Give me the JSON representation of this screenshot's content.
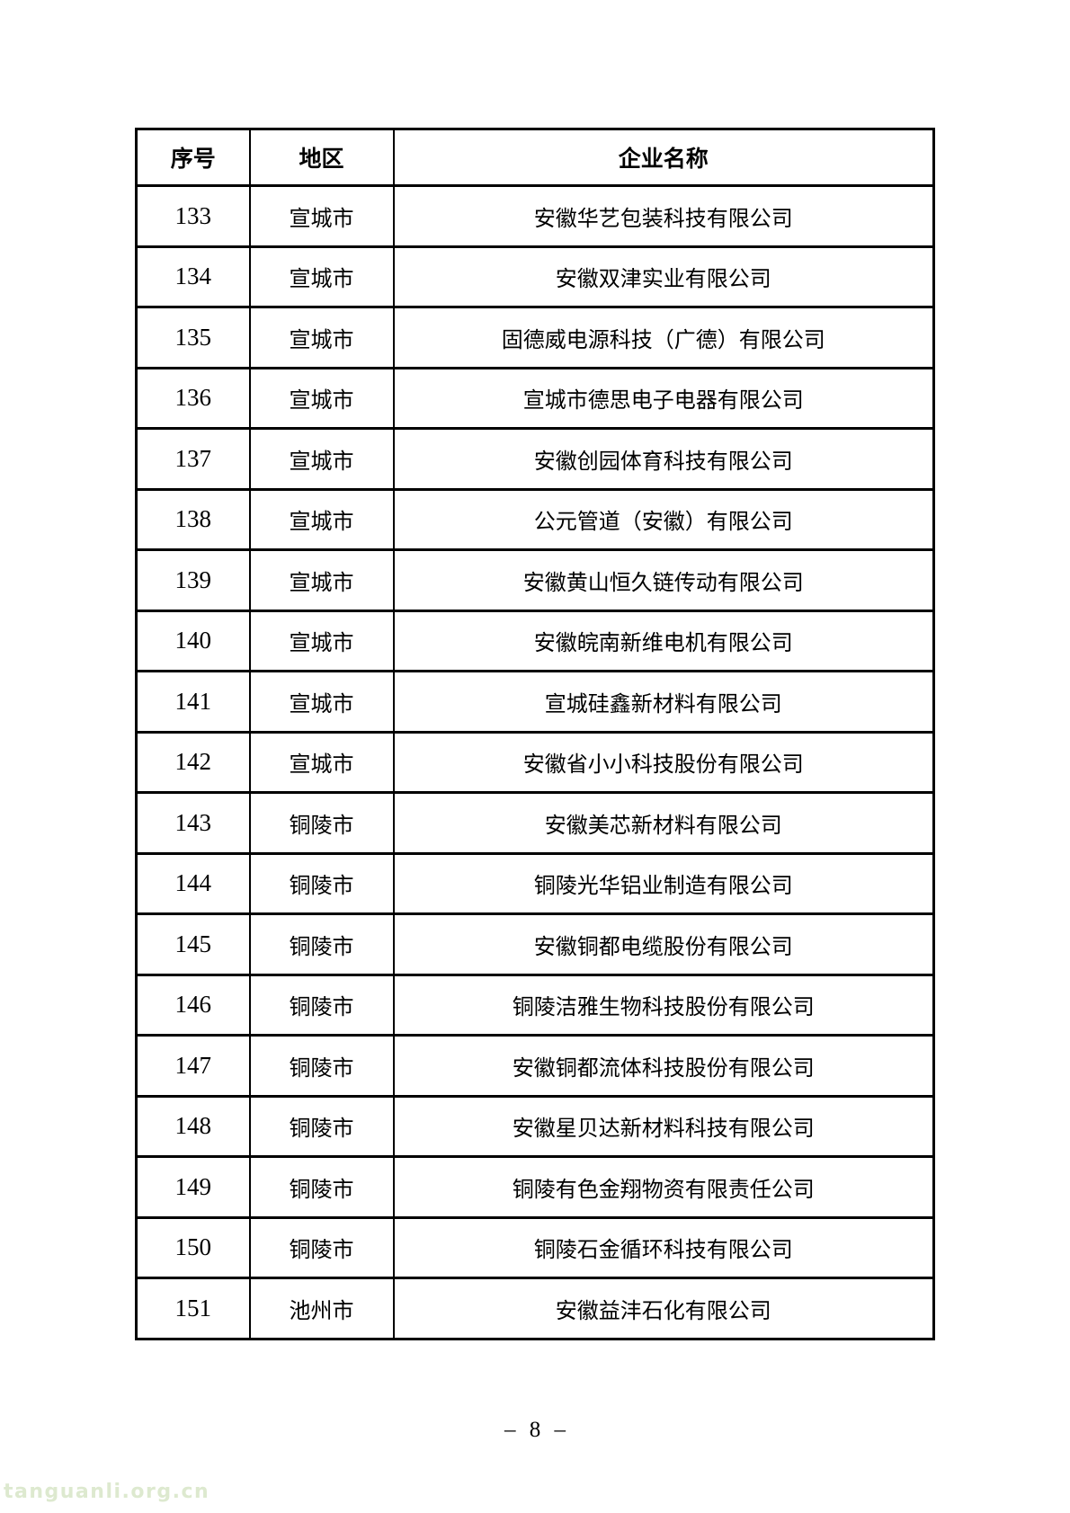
{
  "page": {
    "number_label": "– 8 –",
    "watermark": "tanguanli.org.cn"
  },
  "table": {
    "headers": [
      "序号",
      "地区",
      "企业名称"
    ],
    "rows": [
      {
        "no": "133",
        "region": "宣城市",
        "company": "安徽华艺包装科技有限公司"
      },
      {
        "no": "134",
        "region": "宣城市",
        "company": "安徽双津实业有限公司"
      },
      {
        "no": "135",
        "region": "宣城市",
        "company": "固德威电源科技（广德）有限公司"
      },
      {
        "no": "136",
        "region": "宣城市",
        "company": "宣城市德思电子电器有限公司"
      },
      {
        "no": "137",
        "region": "宣城市",
        "company": "安徽创园体育科技有限公司"
      },
      {
        "no": "138",
        "region": "宣城市",
        "company": "公元管道（安徽）有限公司"
      },
      {
        "no": "139",
        "region": "宣城市",
        "company": "安徽黄山恒久链传动有限公司"
      },
      {
        "no": "140",
        "region": "宣城市",
        "company": "安徽皖南新维电机有限公司"
      },
      {
        "no": "141",
        "region": "宣城市",
        "company": "宣城硅鑫新材料有限公司"
      },
      {
        "no": "142",
        "region": "宣城市",
        "company": "安徽省小小科技股份有限公司"
      },
      {
        "no": "143",
        "region": "铜陵市",
        "company": "安徽美芯新材料有限公司"
      },
      {
        "no": "144",
        "region": "铜陵市",
        "company": "铜陵光华铝业制造有限公司"
      },
      {
        "no": "145",
        "region": "铜陵市",
        "company": "安徽铜都电缆股份有限公司"
      },
      {
        "no": "146",
        "region": "铜陵市",
        "company": "铜陵洁雅生物科技股份有限公司"
      },
      {
        "no": "147",
        "region": "铜陵市",
        "company": "安徽铜都流体科技股份有限公司"
      },
      {
        "no": "148",
        "region": "铜陵市",
        "company": "安徽星贝达新材料科技有限公司"
      },
      {
        "no": "149",
        "region": "铜陵市",
        "company": "铜陵有色金翔物资有限责任公司"
      },
      {
        "no": "150",
        "region": "铜陵市",
        "company": "铜陵石金循环科技有限公司"
      },
      {
        "no": "151",
        "region": "池州市",
        "company": "安徽益沣石化有限公司"
      }
    ]
  }
}
